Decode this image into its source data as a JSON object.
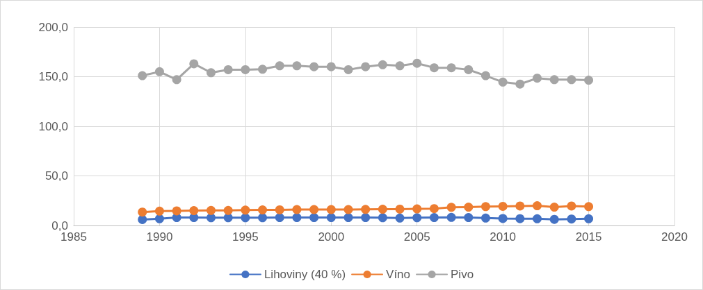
{
  "chart_data": {
    "type": "line",
    "x": [
      1989,
      1990,
      1991,
      1992,
      1993,
      1994,
      1995,
      1996,
      1997,
      1998,
      1999,
      2000,
      2001,
      2002,
      2003,
      2004,
      2005,
      2006,
      2007,
      2008,
      2009,
      2010,
      2011,
      2012,
      2013,
      2014,
      2015
    ],
    "series": [
      {
        "name": "Lihoviny (40 %)",
        "color": "#4472c4",
        "values": [
          6,
          6.8,
          8,
          8,
          7.8,
          7.8,
          7.8,
          7.8,
          8,
          8,
          8,
          8,
          8,
          8,
          7.8,
          7.5,
          7.8,
          8,
          8.2,
          8,
          7.5,
          7,
          6.9,
          6.8,
          6.2,
          6.5,
          6.8
        ]
      },
      {
        "name": "Víno",
        "color": "#ed7d31",
        "values": [
          13.5,
          14.5,
          14.7,
          15,
          15.2,
          15.2,
          15.5,
          15.7,
          15.8,
          16,
          16,
          16,
          16,
          16.2,
          16.4,
          16.5,
          16.7,
          17,
          18.3,
          18.5,
          19,
          19.3,
          19.6,
          19.9,
          18.5,
          19.6,
          19
        ]
      },
      {
        "name": "Pivo",
        "color": "#a5a5a5",
        "values": [
          151,
          155,
          147,
          163,
          154,
          157,
          157,
          157.5,
          161,
          161,
          160,
          160,
          157,
          160,
          162,
          161,
          163.5,
          159,
          159,
          157,
          151,
          144.5,
          142.5,
          148.5,
          147,
          147,
          146.5
        ]
      }
    ],
    "xlim": [
      1985,
      2020
    ],
    "xticks": [
      1985,
      1990,
      1995,
      2000,
      2005,
      2010,
      2015,
      2020
    ],
    "ylim": [
      0,
      200
    ],
    "yticks": [
      {
        "value": 0,
        "label": "0,0"
      },
      {
        "value": 50,
        "label": "50,0"
      },
      {
        "value": 100,
        "label": "100,0"
      },
      {
        "value": 150,
        "label": "150,0"
      },
      {
        "value": 200,
        "label": "200,0"
      }
    ],
    "grid": true,
    "legend": "bottom",
    "marker": "circle",
    "line_style": "solid"
  }
}
